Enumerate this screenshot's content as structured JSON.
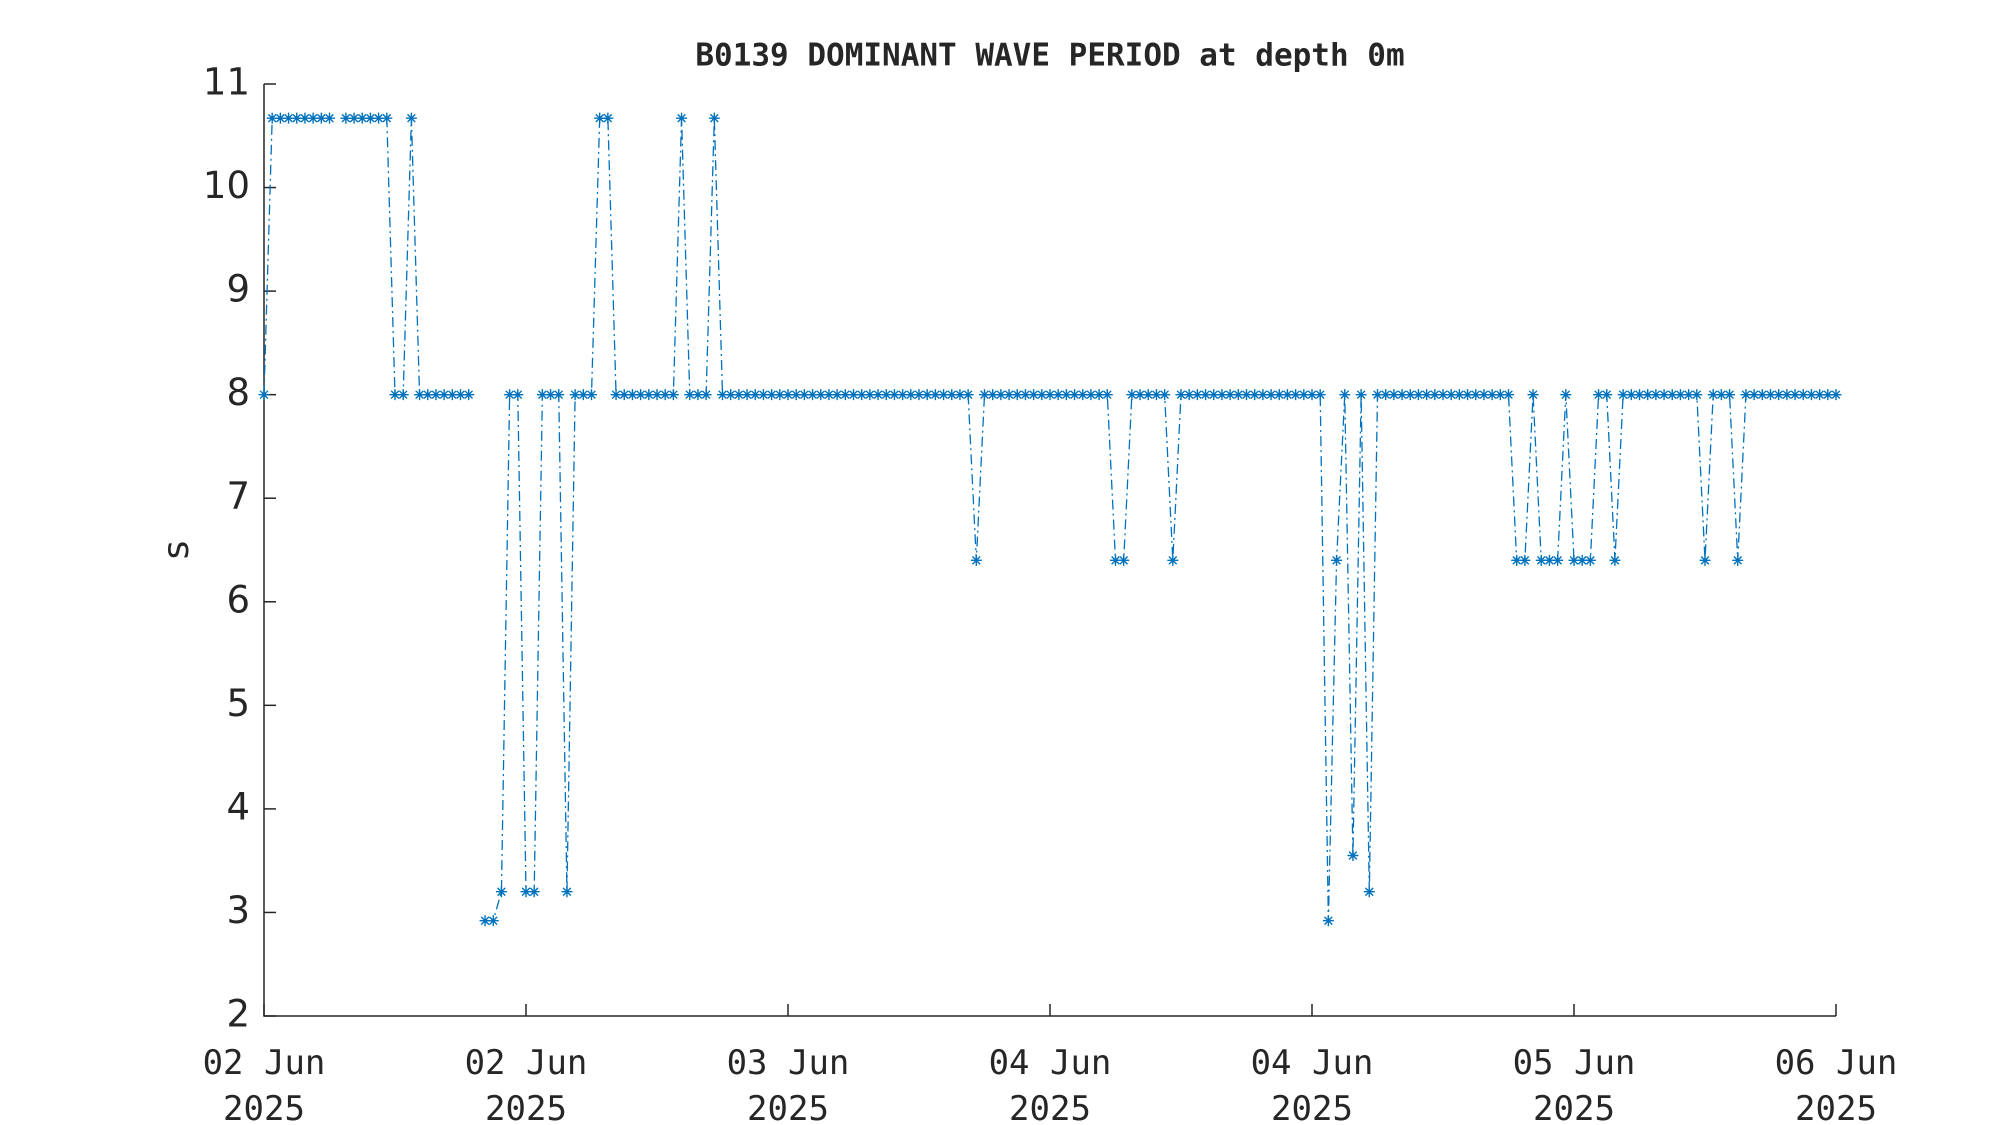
{
  "chart_data": {
    "type": "line",
    "title": "B0139 DOMINANT WAVE PERIOD at depth 0m",
    "y_label": "s",
    "color": "#0072bd",
    "marker": "asterisk",
    "line_style": "dash-dot",
    "xlim": [
      0,
      96
    ],
    "xticks": [
      {
        "value": 0,
        "label": "02 Jun\n2025"
      },
      {
        "value": 16,
        "label": "02 Jun\n2025"
      },
      {
        "value": 32,
        "label": "03 Jun\n2025"
      },
      {
        "value": 48,
        "label": "04 Jun\n2025"
      },
      {
        "value": 64,
        "label": "04 Jun\n2025"
      },
      {
        "value": 80,
        "label": "05 Jun\n2025"
      },
      {
        "value": 96,
        "label": "06 Jun\n2025"
      }
    ],
    "ylim": [
      2,
      11
    ],
    "yticks": [
      2,
      3,
      4,
      5,
      6,
      7,
      8,
      9,
      10,
      11
    ],
    "x": [
      0,
      0.5,
      1,
      1.5,
      2,
      2.5,
      3,
      3.5,
      4,
      4.5,
      5,
      5.5,
      6,
      6.5,
      7,
      7.5,
      8,
      8.5,
      9,
      9.5,
      10,
      10.5,
      11,
      11.5,
      12,
      12.5,
      13,
      13.5,
      14,
      14.5,
      15,
      15.5,
      16,
      16.5,
      17,
      17.5,
      18,
      18.5,
      19,
      19.5,
      20,
      20.5,
      21,
      21.5,
      22,
      22.5,
      23,
      23.5,
      24,
      24.5,
      25,
      25.5,
      26,
      26.5,
      27,
      27.5,
      28,
      28.5,
      29,
      29.5,
      30,
      30.5,
      31,
      31.5,
      32,
      32.5,
      33,
      33.5,
      34,
      34.5,
      35,
      35.5,
      36,
      36.5,
      37,
      37.5,
      38,
      38.5,
      39,
      39.5,
      40,
      40.5,
      41,
      41.5,
      42,
      42.5,
      43,
      43.5,
      44,
      44.5,
      45,
      45.5,
      46,
      46.5,
      47,
      47.5,
      48,
      48.5,
      49,
      49.5,
      50,
      50.5,
      51,
      51.5,
      52,
      52.5,
      53,
      53.5,
      54,
      54.5,
      55,
      55.5,
      56,
      56.5,
      57,
      57.5,
      58,
      58.5,
      59,
      59.5,
      60,
      60.5,
      61,
      61.5,
      62,
      62.5,
      63,
      63.5,
      64,
      64.5,
      65,
      65.5,
      66,
      66.5,
      67,
      67.5,
      68,
      68.5,
      69,
      69.5,
      70,
      70.5,
      71,
      71.5,
      72,
      72.5,
      73,
      73.5,
      74,
      74.5,
      75,
      75.5,
      76,
      76.5,
      77,
      77.5,
      78,
      78.5,
      79,
      79.5,
      80,
      80.5,
      81,
      81.5,
      82,
      82.5,
      83,
      83.5,
      84,
      84.5,
      85,
      85.5,
      86,
      86.5,
      87,
      87.5,
      88,
      88.5,
      89,
      89.5,
      90,
      90.5,
      91,
      91.5,
      92,
      92.5,
      93,
      93.5,
      94,
      94.5,
      95,
      95.5,
      96
    ],
    "series": [
      {
        "name": "B0139",
        "values": [
          8,
          10.67,
          10.67,
          10.67,
          10.67,
          10.67,
          10.67,
          10.67,
          10.67,
          null,
          10.67,
          10.67,
          10.67,
          10.67,
          10.67,
          10.67,
          8,
          8,
          10.67,
          8,
          8,
          8,
          8,
          8,
          8,
          8,
          null,
          2.92,
          2.92,
          3.2,
          8,
          8,
          3.2,
          3.2,
          8,
          8,
          8,
          3.2,
          8,
          8,
          8,
          10.67,
          10.67,
          8,
          8,
          8,
          8,
          8,
          8,
          8,
          8,
          10.67,
          8,
          8,
          8,
          10.67,
          8,
          8,
          8,
          8,
          8,
          8,
          8,
          8,
          8,
          8,
          8,
          8,
          8,
          8,
          8,
          8,
          8,
          8,
          8,
          8,
          8,
          8,
          8,
          8,
          8,
          8,
          8,
          8,
          8,
          8,
          8,
          6.4,
          8,
          8,
          8,
          8,
          8,
          8,
          8,
          8,
          8,
          8,
          8,
          8,
          8,
          8,
          8,
          8,
          6.4,
          6.4,
          8,
          8,
          8,
          8,
          8,
          6.4,
          8,
          8,
          8,
          8,
          8,
          8,
          8,
          8,
          8,
          8,
          8,
          8,
          8,
          8,
          8,
          8,
          8,
          8,
          2.92,
          6.4,
          8,
          3.55,
          8,
          3.2,
          8,
          8,
          8,
          8,
          8,
          8,
          8,
          8,
          8,
          8,
          8,
          8,
          8,
          8,
          8,
          8,
          8,
          6.4,
          6.4,
          8,
          6.4,
          6.4,
          6.4,
          8,
          6.4,
          6.4,
          6.4,
          8,
          8,
          6.4,
          8,
          8,
          8,
          8,
          8,
          8,
          8,
          8,
          8,
          8,
          6.4,
          8,
          8,
          8,
          6.4,
          8,
          8,
          8,
          8,
          8,
          8,
          8,
          8,
          8,
          8,
          8,
          8
        ]
      }
    ]
  }
}
